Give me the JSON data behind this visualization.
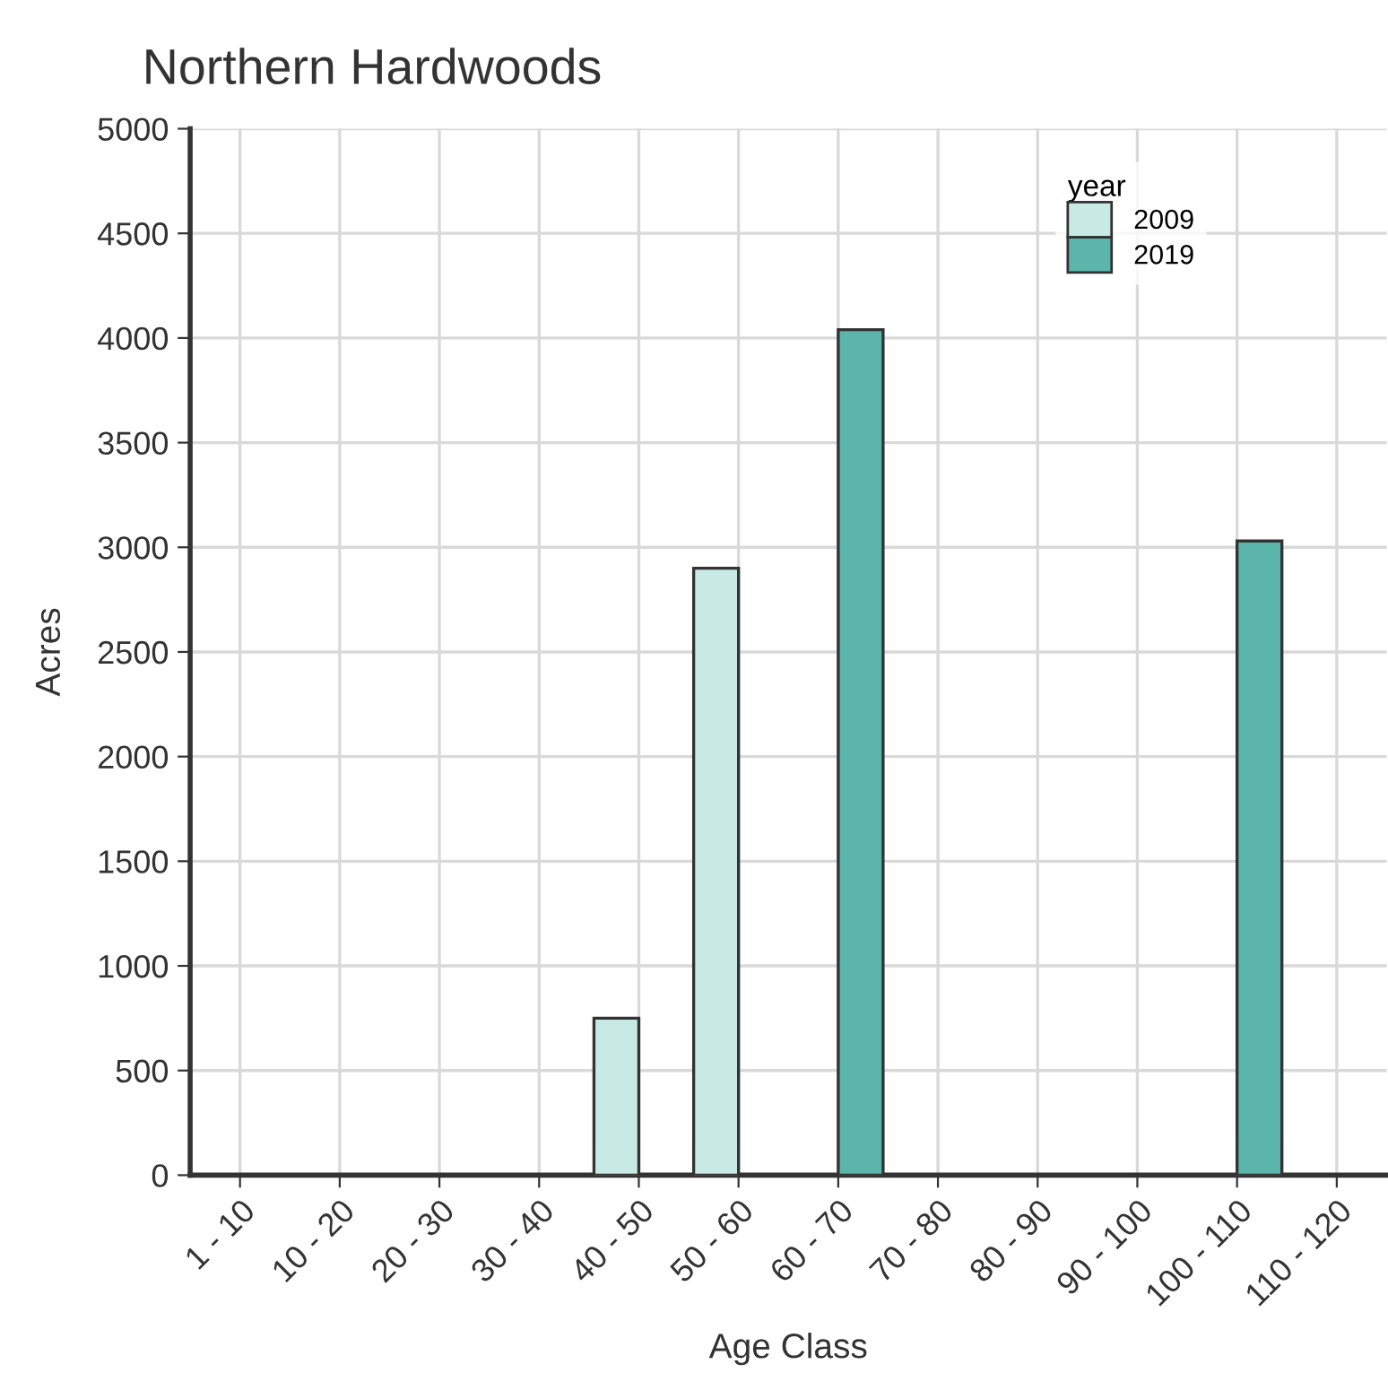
{
  "chart_data": {
    "type": "bar",
    "title": "Northern Hardwoods",
    "xlabel": "Age Class",
    "ylabel": "Acres",
    "legend_title": "year",
    "categories": [
      "1 - 10",
      "10 - 20",
      "20 - 30",
      "30 - 40",
      "40 - 50",
      "50 - 60",
      "60 - 70",
      "70 - 80",
      "80 - 90",
      "90 - 100",
      "100 - 110",
      "110 - 120"
    ],
    "series": [
      {
        "name": "2009",
        "color": "#c8eae4",
        "values": [
          null,
          null,
          null,
          null,
          750,
          2900,
          null,
          null,
          null,
          null,
          null,
          null
        ]
      },
      {
        "name": "2019",
        "color": "#5bb5aa",
        "values": [
          null,
          null,
          null,
          null,
          null,
          null,
          4040,
          null,
          null,
          null,
          3030,
          null
        ]
      }
    ],
    "ylim": [
      0,
      5000
    ],
    "yticks": [
      0,
      500,
      1000,
      1500,
      2000,
      2500,
      3000,
      3500,
      4000,
      4500,
      5000
    ],
    "grid": true,
    "legend": "top right"
  }
}
